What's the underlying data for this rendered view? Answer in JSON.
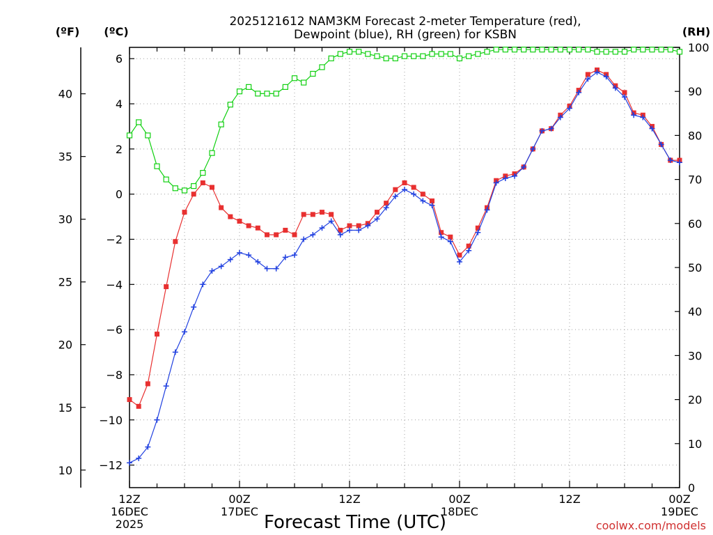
{
  "colors": {
    "temperature": "#e83030",
    "dewpoint": "#2040e0",
    "rh": "#10d010"
  },
  "chart_data": {
    "type": "line",
    "title_line1": "2025121612 NAM3KM Forecast 2-meter Temperature (red),",
    "title_line2": "Dewpoint (blue), RH (green) for KSBN",
    "xlabel": "Forecast Time (UTC)",
    "credit": "coolwx.com/models",
    "unit_f": "(ºF)",
    "unit_c": "(ºC)",
    "unit_rh": "(RH)",
    "x_hours_range": [
      0,
      60
    ],
    "x_ticks": [
      {
        "h": 0,
        "lines": [
          "12Z",
          "16DEC",
          "2025"
        ]
      },
      {
        "h": 12,
        "lines": [
          "00Z",
          "17DEC"
        ]
      },
      {
        "h": 24,
        "lines": [
          "12Z"
        ]
      },
      {
        "h": 36,
        "lines": [
          "00Z",
          "18DEC"
        ]
      },
      {
        "h": 48,
        "lines": [
          "12Z"
        ]
      },
      {
        "h": 60,
        "lines": [
          "00Z",
          "19DEC"
        ]
      }
    ],
    "ylim_c": [
      -13,
      6.5
    ],
    "yticks_c": [
      "6",
      "4",
      "2",
      "0",
      "−2",
      "−4",
      "−6",
      "−8",
      "−10",
      "−12"
    ],
    "ylim_f": [
      8.6,
      43.7
    ],
    "yticks_f": [
      "40",
      "35",
      "30",
      "25",
      "20",
      "15",
      "10"
    ],
    "ylim_rh": [
      0,
      100
    ],
    "yticks_rh": [
      "100",
      "90",
      "80",
      "70",
      "60",
      "50",
      "40",
      "30",
      "20",
      "10",
      "0"
    ],
    "series": [
      {
        "name": "Temperature (°C)",
        "axis": "c",
        "color_key": "temperature",
        "marker": "filled-square",
        "values": [
          -9.1,
          -9.4,
          -8.4,
          -6.2,
          -4.1,
          -2.1,
          -0.8,
          0.0,
          0.5,
          0.3,
          -0.6,
          -1.0,
          -1.2,
          -1.4,
          -1.5,
          -1.8,
          -1.8,
          -1.6,
          -1.8,
          -0.9,
          -0.9,
          -0.8,
          -0.9,
          -1.6,
          -1.4,
          -1.4,
          -1.3,
          -0.8,
          -0.4,
          0.2,
          0.5,
          0.3,
          0.0,
          -0.3,
          -1.7,
          -1.9,
          -2.7,
          -2.3,
          -1.5,
          -0.6,
          0.6,
          0.8,
          0.9,
          1.2,
          2.0,
          2.8,
          2.9,
          3.5,
          3.9,
          4.6,
          5.3,
          5.5,
          5.3,
          4.8,
          4.5,
          3.6,
          3.5,
          3.0,
          2.2,
          1.5,
          1.5
        ]
      },
      {
        "name": "Dewpoint (°C)",
        "axis": "c",
        "color_key": "dewpoint",
        "marker": "plus",
        "values": [
          -11.9,
          -11.7,
          -11.2,
          -10.0,
          -8.5,
          -7.0,
          -6.1,
          -5.0,
          -4.0,
          -3.4,
          -3.2,
          -2.9,
          -2.6,
          -2.7,
          -3.0,
          -3.3,
          -3.3,
          -2.8,
          -2.7,
          -2.0,
          -1.8,
          -1.5,
          -1.2,
          -1.8,
          -1.6,
          -1.6,
          -1.4,
          -1.1,
          -0.6,
          -0.1,
          0.2,
          0.0,
          -0.3,
          -0.5,
          -1.9,
          -2.1,
          -3.0,
          -2.5,
          -1.7,
          -0.7,
          0.5,
          0.7,
          0.8,
          1.2,
          2.0,
          2.8,
          2.9,
          3.4,
          3.8,
          4.5,
          5.1,
          5.4,
          5.2,
          4.7,
          4.3,
          3.5,
          3.4,
          2.9,
          2.2,
          1.5,
          1.4
        ]
      },
      {
        "name": "RH (%)",
        "axis": "rh",
        "color_key": "rh",
        "marker": "open-square",
        "values": [
          80,
          83,
          80,
          73,
          70,
          68,
          67.5,
          68.5,
          71.5,
          76,
          82.5,
          87,
          90,
          91,
          89.5,
          89.5,
          89.5,
          91,
          93,
          92,
          94,
          95.5,
          97.5,
          98.5,
          99,
          99,
          98.5,
          98,
          97.5,
          97.5,
          98,
          98,
          98,
          98.5,
          98.5,
          98.5,
          97.5,
          98,
          98.5,
          99,
          99.5,
          99.5,
          99.5,
          99.5,
          99.5,
          99.5,
          99.5,
          99.5,
          99.5,
          99.5,
          99.5,
          99,
          99,
          99,
          99,
          99.5,
          99.5,
          99.5,
          99.5,
          99.5,
          99
        ]
      }
    ]
  }
}
